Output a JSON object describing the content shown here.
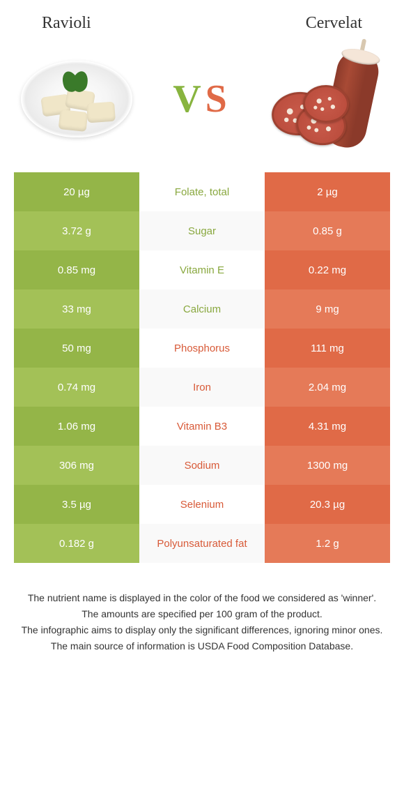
{
  "comparison": {
    "left_title": "Ravioli",
    "right_title": "Cervelat",
    "vs_text": "VS"
  },
  "colors": {
    "green_dark": "#94b548",
    "green_light": "#a3c157",
    "orange_dark": "#e06a47",
    "orange_light": "#e57a58",
    "mid_alt": "#f9f9f9",
    "mid_base": "#ffffff",
    "label_green": "#89a83f",
    "label_orange": "#d85a38"
  },
  "rows": [
    {
      "nutrient": "Folate, total",
      "left": "20 µg",
      "right": "2 µg",
      "winner": "left"
    },
    {
      "nutrient": "Sugar",
      "left": "3.72 g",
      "right": "0.85 g",
      "winner": "left"
    },
    {
      "nutrient": "Vitamin E",
      "left": "0.85 mg",
      "right": "0.22 mg",
      "winner": "left"
    },
    {
      "nutrient": "Calcium",
      "left": "33 mg",
      "right": "9 mg",
      "winner": "left"
    },
    {
      "nutrient": "Phosphorus",
      "left": "50 mg",
      "right": "111 mg",
      "winner": "right"
    },
    {
      "nutrient": "Iron",
      "left": "0.74 mg",
      "right": "2.04 mg",
      "winner": "right"
    },
    {
      "nutrient": "Vitamin B3",
      "left": "1.06 mg",
      "right": "4.31 mg",
      "winner": "right"
    },
    {
      "nutrient": "Sodium",
      "left": "306 mg",
      "right": "1300 mg",
      "winner": "right"
    },
    {
      "nutrient": "Selenium",
      "left": "3.5 µg",
      "right": "20.3 µg",
      "winner": "right"
    },
    {
      "nutrient": "Polyunsaturated fat",
      "left": "0.182 g",
      "right": "1.2 g",
      "winner": "right"
    }
  ],
  "footer_lines": [
    "The nutrient name is displayed in the color of the food we considered as 'winner'.",
    "The amounts are specified per 100 gram of the product.",
    "The infographic aims to display only the significant differences, ignoring minor ones.",
    "The main source of information is USDA Food Composition Database."
  ]
}
